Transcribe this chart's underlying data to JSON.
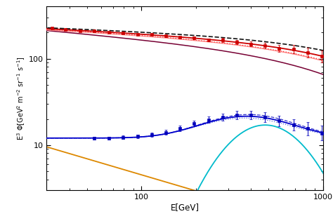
{
  "title": "",
  "xlabel": "E[GeV]",
  "ylabel": "E$^{3}$ $\\Phi$[GeV$^{2}$ m$^{-2}$ sr$^{-1}$ s$^{-1}$]",
  "xlim": [
    30,
    1000
  ],
  "ylim": [
    3,
    400
  ],
  "colors": {
    "red_data": "#cc0000",
    "blue_data": "#0000bb",
    "red_solid_dark": "#cc0000",
    "red_solid_light": "#ff8888",
    "red_dotted": "#ff4444",
    "purple": "#770033",
    "blue_solid": "#0000cc",
    "blue_dashed": "#3333cc",
    "blue_dotted": "#5566dd",
    "black_dashed": "#111111",
    "cyan": "#00bbcc",
    "orange": "#dd8800"
  }
}
